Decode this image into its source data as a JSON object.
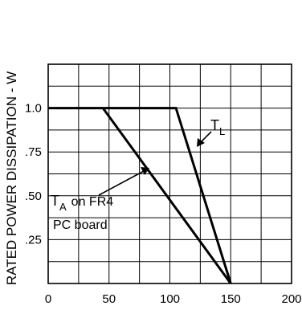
{
  "chart_data": {
    "type": "line",
    "title": "",
    "xlabel": "",
    "ylabel": "RATED POWER DISSIPATION - W",
    "xlim": [
      0,
      200
    ],
    "ylim": [
      0,
      1.25
    ],
    "grid": true,
    "x_ticks": [
      "0",
      "50",
      "100",
      "150",
      "200"
    ],
    "y_ticks": [
      ".25",
      ".50",
      ".75",
      "1.0"
    ],
    "series": [
      {
        "name": "TL",
        "x": [
          0,
          105,
          150
        ],
        "y": [
          1.0,
          1.0,
          0
        ]
      },
      {
        "name": "TA on FR4 PC board",
        "x": [
          45,
          150
        ],
        "y": [
          1.0,
          0
        ]
      }
    ],
    "annotations": {
      "tl": {
        "main": "T",
        "sub": "L"
      },
      "ta": {
        "main": "T",
        "sub": "A",
        "rest": "on FR4",
        "line2": "PC board"
      }
    }
  }
}
